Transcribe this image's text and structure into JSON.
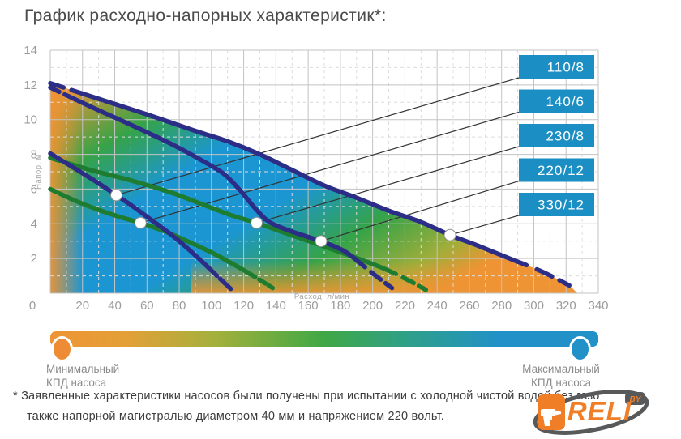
{
  "title": "График расходно-напорных характеристик*:",
  "chart_data": {
    "type": "line",
    "xlabel": "Расход, л/мин",
    "ylabel": "Напор, м",
    "xlim": [
      0,
      340
    ],
    "ylim": [
      0,
      14
    ],
    "x_ticks": [
      0,
      20,
      40,
      60,
      80,
      100,
      120,
      140,
      160,
      180,
      200,
      220,
      240,
      260,
      280,
      300,
      320,
      340
    ],
    "y_ticks": [
      14,
      12,
      10,
      8,
      6,
      4,
      2
    ],
    "grid": "major solid / minor dashed",
    "legend_position": "right callout boxes",
    "series": [
      {
        "name": "110/8",
        "color": "#2B2D87",
        "marker": [
          41,
          5.65
        ],
        "points": [
          [
            0,
            8.05
          ],
          [
            15,
            7.2
          ],
          [
            28,
            6.45
          ],
          [
            41,
            5.65
          ],
          [
            52,
            4.95
          ],
          [
            63,
            4.2
          ],
          [
            74,
            3.45
          ],
          [
            85,
            2.6
          ],
          [
            95,
            1.75
          ],
          [
            104,
            0.95
          ],
          [
            112,
            0.25
          ]
        ]
      },
      {
        "name": "140/6",
        "color": "#1E7C31",
        "marker": [
          56,
          4.05
        ],
        "points": [
          [
            0,
            6.0
          ],
          [
            15,
            5.35
          ],
          [
            30,
            4.8
          ],
          [
            43,
            4.4
          ],
          [
            56,
            4.05
          ],
          [
            70,
            3.6
          ],
          [
            85,
            3.0
          ],
          [
            100,
            2.35
          ],
          [
            113,
            1.7
          ],
          [
            126,
            1.0
          ],
          [
            138,
            0.3
          ]
        ]
      },
      {
        "name": "230/8",
        "color": "#1E7C31",
        "marker": [
          128,
          4.05
        ],
        "points": [
          [
            0,
            7.8
          ],
          [
            25,
            7.1
          ],
          [
            50,
            6.5
          ],
          [
            75,
            5.8
          ],
          [
            95,
            5.1
          ],
          [
            112,
            4.5
          ],
          [
            128,
            4.05
          ],
          [
            145,
            3.5
          ],
          [
            165,
            2.85
          ],
          [
            185,
            2.2
          ],
          [
            205,
            1.5
          ],
          [
            220,
            0.85
          ],
          [
            233,
            0.2
          ]
        ]
      },
      {
        "name": "220/12",
        "color": "#2B2D87",
        "marker": [
          168,
          3.0
        ],
        "points": [
          [
            0,
            11.85
          ],
          [
            25,
            10.75
          ],
          [
            50,
            9.7
          ],
          [
            75,
            8.6
          ],
          [
            95,
            7.6
          ],
          [
            108,
            6.85
          ],
          [
            118,
            5.9
          ],
          [
            127,
            4.9
          ],
          [
            136,
            4.1
          ],
          [
            150,
            3.55
          ],
          [
            168,
            3.0
          ],
          [
            182,
            2.45
          ],
          [
            192,
            1.75
          ],
          [
            202,
            1.0
          ],
          [
            212,
            0.3
          ]
        ]
      },
      {
        "name": "330/12",
        "color": "#2B2D87",
        "marker": [
          248,
          3.35
        ],
        "points": [
          [
            0,
            12.1
          ],
          [
            30,
            11.2
          ],
          [
            60,
            10.3
          ],
          [
            90,
            9.35
          ],
          [
            110,
            8.75
          ],
          [
            130,
            8.0
          ],
          [
            150,
            7.1
          ],
          [
            170,
            6.2
          ],
          [
            190,
            5.5
          ],
          [
            210,
            4.75
          ],
          [
            230,
            4.1
          ],
          [
            248,
            3.35
          ],
          [
            265,
            2.75
          ],
          [
            285,
            2.0
          ],
          [
            305,
            1.25
          ],
          [
            322,
            0.45
          ]
        ]
      }
    ],
    "efficiency_colors": {
      "low": "#EE9434",
      "mid": "#35A348",
      "high": "#1B96D2"
    }
  },
  "callout_box_color": "#1B8FC4",
  "legend": {
    "min_line1": "Минимальный",
    "min_line2": "КПД насоса",
    "max_line1": "Максимальный",
    "max_line2": "КПД насоса"
  },
  "footnote_line1": "* Заявленные характеристики насосов были получены при испытании с холодной чистой водой без газо",
  "footnote_line2": "также напорной магистралью диаметром 40 мм и напряжением 220 вольт.",
  "logo": {
    "brand": "DRELI",
    "by": "BY"
  }
}
